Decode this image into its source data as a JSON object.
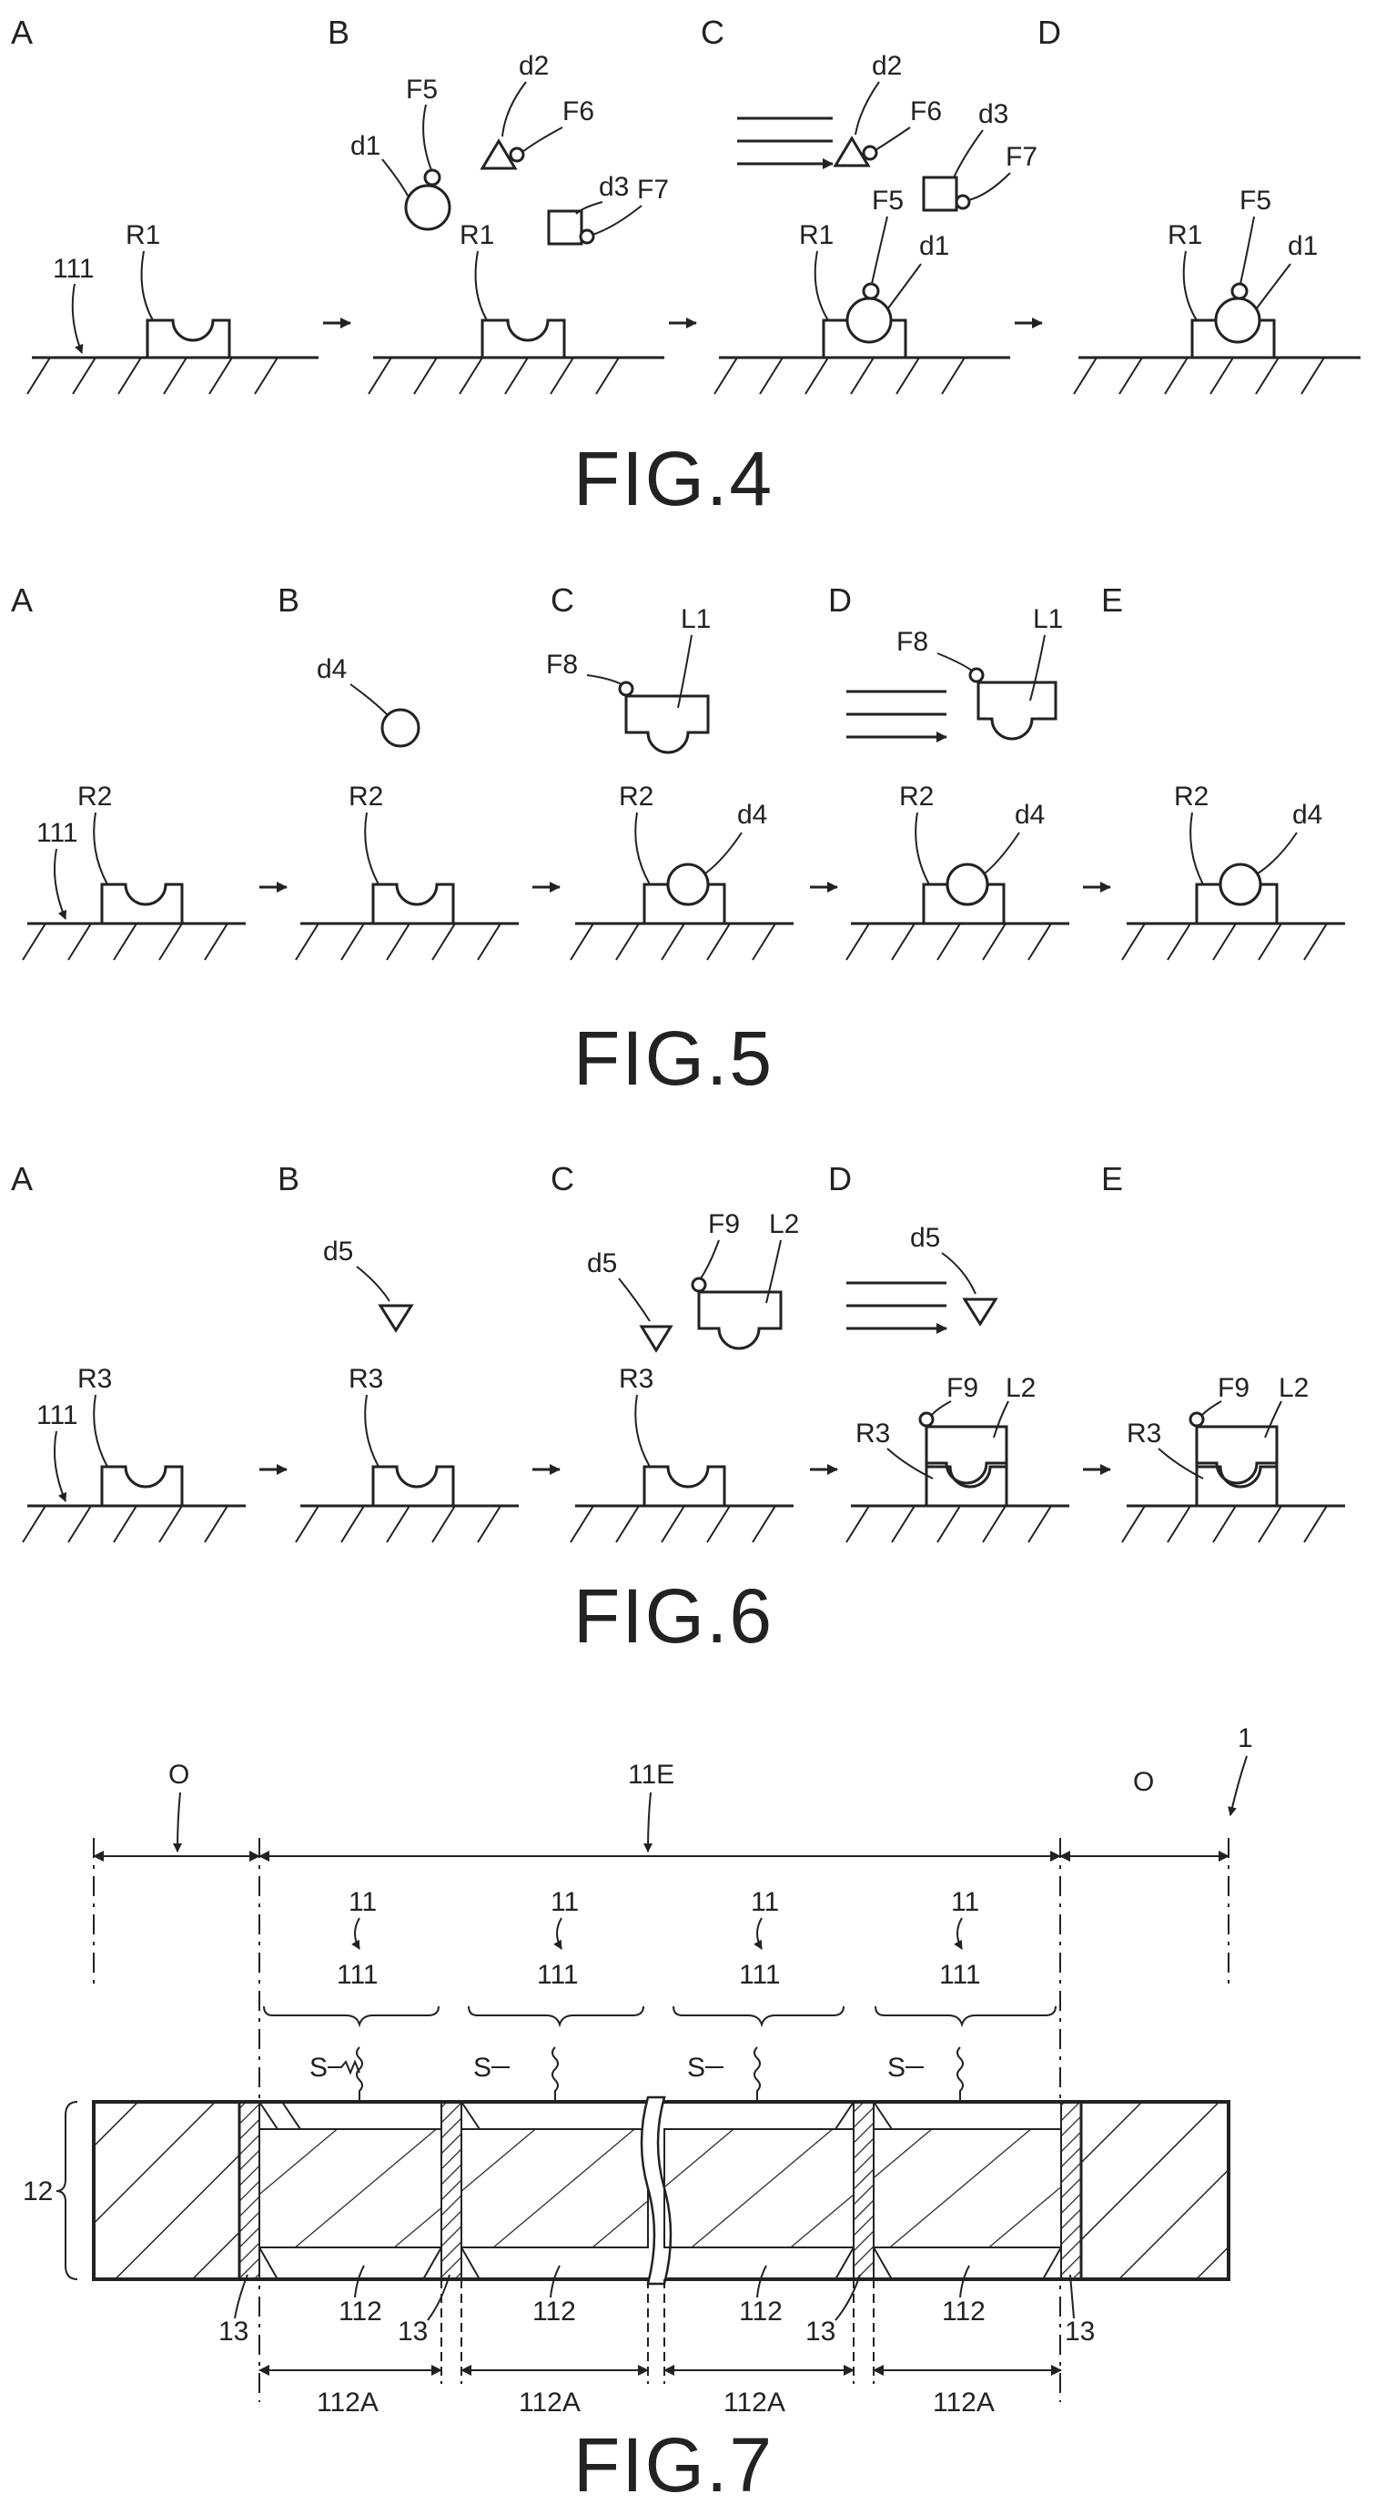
{
  "fig4": {
    "caption": "FIG.4",
    "panels": [
      "A",
      "B",
      "C",
      "D"
    ],
    "labels": {
      "surface": "111",
      "recess": "R1",
      "d1": "d1",
      "d2": "d2",
      "d3": "d3",
      "F5": "F5",
      "F6": "F6",
      "F7": "F7"
    }
  },
  "fig5": {
    "caption": "FIG.5",
    "panels": [
      "A",
      "B",
      "C",
      "D",
      "E"
    ],
    "labels": {
      "surface": "111",
      "recess": "R2",
      "d4": "d4",
      "F8": "F8",
      "L1": "L1"
    }
  },
  "fig6": {
    "caption": "FIG.6",
    "panels": [
      "A",
      "B",
      "C",
      "D",
      "E"
    ],
    "labels": {
      "surface": "111",
      "recess": "R3",
      "d5": "d5",
      "F9": "F9",
      "L2": "L2"
    }
  },
  "fig7": {
    "caption": "FIG.7",
    "labels": {
      "ref": "1",
      "outer": "O",
      "region": "11E",
      "unit": "11",
      "surface": "111",
      "s": "S",
      "substrate": "12",
      "wall": "13",
      "bottom": "112",
      "width": "112A"
    }
  }
}
